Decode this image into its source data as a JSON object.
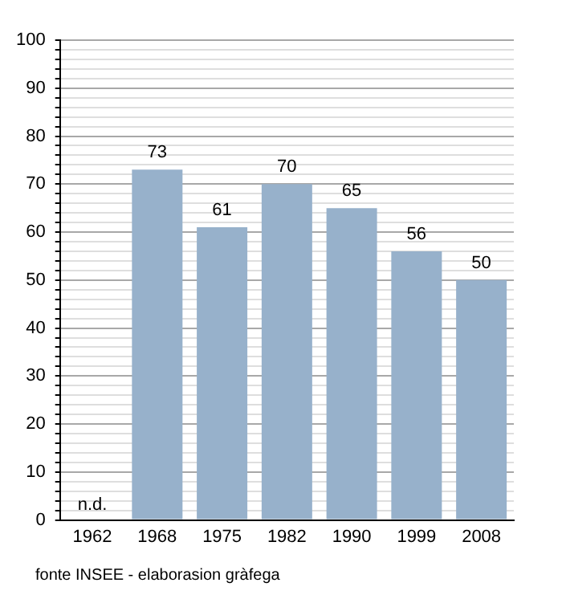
{
  "chart_data": {
    "type": "bar",
    "categories": [
      "1962",
      "1968",
      "1975",
      "1982",
      "1990",
      "1999",
      "2008"
    ],
    "values": [
      null,
      73,
      61,
      70,
      65,
      56,
      50
    ],
    "color": "#97b1cb",
    "ylim": [
      0,
      100
    ],
    "yticks": [
      0,
      {
        "value": 2,
        "label": null
      },
      {
        "value": 4,
        "label": null
      },
      {
        "value": 6,
        "label": null
      },
      {
        "value": 8,
        "label": null
      },
      10,
      {
        "value": 12,
        "label": null
      },
      {
        "value": 14,
        "label": null
      },
      {
        "value": 16,
        "label": null
      },
      {
        "value": 18,
        "label": null
      },
      20,
      {
        "value": 22,
        "label": null
      },
      {
        "value": 24,
        "label": null
      },
      {
        "value": 26,
        "label": null
      },
      {
        "value": 28,
        "label": null
      },
      30,
      {
        "value": 32,
        "label": null
      },
      {
        "value": 34,
        "label": null
      },
      {
        "value": 36,
        "label": null
      },
      {
        "value": 38,
        "label": null
      },
      40,
      {
        "value": 42,
        "label": null
      },
      {
        "value": 44,
        "label": null
      },
      {
        "value": 46,
        "label": null
      },
      {
        "value": 48,
        "label": null
      },
      50,
      {
        "value": 52,
        "label": null
      },
      {
        "value": 54,
        "label": null
      },
      {
        "value": 56,
        "label": null
      },
      {
        "value": 58,
        "label": null
      },
      60,
      {
        "value": 62,
        "label": null
      },
      {
        "value": 64,
        "label": null
      },
      {
        "value": 66,
        "label": null
      },
      {
        "value": 68,
        "label": null
      },
      70,
      {
        "value": 72,
        "label": null
      },
      {
        "value": 74,
        "label": null
      },
      {
        "value": 76,
        "label": null
      },
      {
        "value": 78,
        "label": null
      },
      80,
      {
        "value": 82,
        "label": null
      },
      {
        "value": 84,
        "label": null
      },
      {
        "value": 86,
        "label": null
      },
      {
        "value": 88,
        "label": null
      },
      90,
      {
        "value": 92,
        "label": null
      },
      {
        "value": 94,
        "label": null
      },
      {
        "value": 96,
        "label": null
      },
      {
        "value": 98,
        "label": null
      },
      100
    ],
    "grid": "y",
    "data_labels": true,
    "legend": false,
    "annotations": [
      "n.d.",
      "fonte INSEE - elaborasion gràfega"
    ]
  }
}
